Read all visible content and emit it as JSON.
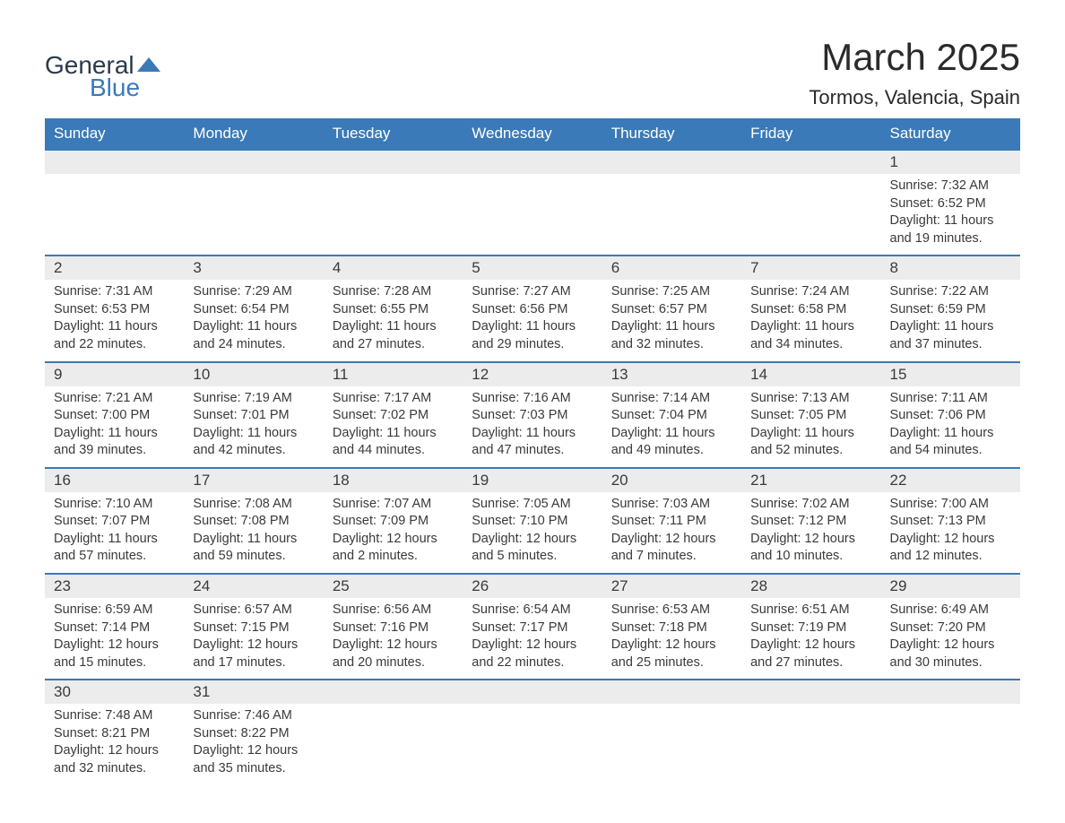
{
  "logo": {
    "general": "General",
    "blue": "Blue"
  },
  "title": "March 2025",
  "location": "Tormos, Valencia, Spain",
  "colors": {
    "header_bg": "#3a7ab8",
    "header_text": "#ffffff",
    "day_bar_bg": "#ececec",
    "text": "#3a3a3a",
    "border": "#3a7ab8"
  },
  "day_names": [
    "Sunday",
    "Monday",
    "Tuesday",
    "Wednesday",
    "Thursday",
    "Friday",
    "Saturday"
  ],
  "weeks": [
    [
      null,
      null,
      null,
      null,
      null,
      null,
      {
        "num": "1",
        "sunrise": "Sunrise: 7:32 AM",
        "sunset": "Sunset: 6:52 PM",
        "daylight1": "Daylight: 11 hours",
        "daylight2": "and 19 minutes."
      }
    ],
    [
      {
        "num": "2",
        "sunrise": "Sunrise: 7:31 AM",
        "sunset": "Sunset: 6:53 PM",
        "daylight1": "Daylight: 11 hours",
        "daylight2": "and 22 minutes."
      },
      {
        "num": "3",
        "sunrise": "Sunrise: 7:29 AM",
        "sunset": "Sunset: 6:54 PM",
        "daylight1": "Daylight: 11 hours",
        "daylight2": "and 24 minutes."
      },
      {
        "num": "4",
        "sunrise": "Sunrise: 7:28 AM",
        "sunset": "Sunset: 6:55 PM",
        "daylight1": "Daylight: 11 hours",
        "daylight2": "and 27 minutes."
      },
      {
        "num": "5",
        "sunrise": "Sunrise: 7:27 AM",
        "sunset": "Sunset: 6:56 PM",
        "daylight1": "Daylight: 11 hours",
        "daylight2": "and 29 minutes."
      },
      {
        "num": "6",
        "sunrise": "Sunrise: 7:25 AM",
        "sunset": "Sunset: 6:57 PM",
        "daylight1": "Daylight: 11 hours",
        "daylight2": "and 32 minutes."
      },
      {
        "num": "7",
        "sunrise": "Sunrise: 7:24 AM",
        "sunset": "Sunset: 6:58 PM",
        "daylight1": "Daylight: 11 hours",
        "daylight2": "and 34 minutes."
      },
      {
        "num": "8",
        "sunrise": "Sunrise: 7:22 AM",
        "sunset": "Sunset: 6:59 PM",
        "daylight1": "Daylight: 11 hours",
        "daylight2": "and 37 minutes."
      }
    ],
    [
      {
        "num": "9",
        "sunrise": "Sunrise: 7:21 AM",
        "sunset": "Sunset: 7:00 PM",
        "daylight1": "Daylight: 11 hours",
        "daylight2": "and 39 minutes."
      },
      {
        "num": "10",
        "sunrise": "Sunrise: 7:19 AM",
        "sunset": "Sunset: 7:01 PM",
        "daylight1": "Daylight: 11 hours",
        "daylight2": "and 42 minutes."
      },
      {
        "num": "11",
        "sunrise": "Sunrise: 7:17 AM",
        "sunset": "Sunset: 7:02 PM",
        "daylight1": "Daylight: 11 hours",
        "daylight2": "and 44 minutes."
      },
      {
        "num": "12",
        "sunrise": "Sunrise: 7:16 AM",
        "sunset": "Sunset: 7:03 PM",
        "daylight1": "Daylight: 11 hours",
        "daylight2": "and 47 minutes."
      },
      {
        "num": "13",
        "sunrise": "Sunrise: 7:14 AM",
        "sunset": "Sunset: 7:04 PM",
        "daylight1": "Daylight: 11 hours",
        "daylight2": "and 49 minutes."
      },
      {
        "num": "14",
        "sunrise": "Sunrise: 7:13 AM",
        "sunset": "Sunset: 7:05 PM",
        "daylight1": "Daylight: 11 hours",
        "daylight2": "and 52 minutes."
      },
      {
        "num": "15",
        "sunrise": "Sunrise: 7:11 AM",
        "sunset": "Sunset: 7:06 PM",
        "daylight1": "Daylight: 11 hours",
        "daylight2": "and 54 minutes."
      }
    ],
    [
      {
        "num": "16",
        "sunrise": "Sunrise: 7:10 AM",
        "sunset": "Sunset: 7:07 PM",
        "daylight1": "Daylight: 11 hours",
        "daylight2": "and 57 minutes."
      },
      {
        "num": "17",
        "sunrise": "Sunrise: 7:08 AM",
        "sunset": "Sunset: 7:08 PM",
        "daylight1": "Daylight: 11 hours",
        "daylight2": "and 59 minutes."
      },
      {
        "num": "18",
        "sunrise": "Sunrise: 7:07 AM",
        "sunset": "Sunset: 7:09 PM",
        "daylight1": "Daylight: 12 hours",
        "daylight2": "and 2 minutes."
      },
      {
        "num": "19",
        "sunrise": "Sunrise: 7:05 AM",
        "sunset": "Sunset: 7:10 PM",
        "daylight1": "Daylight: 12 hours",
        "daylight2": "and 5 minutes."
      },
      {
        "num": "20",
        "sunrise": "Sunrise: 7:03 AM",
        "sunset": "Sunset: 7:11 PM",
        "daylight1": "Daylight: 12 hours",
        "daylight2": "and 7 minutes."
      },
      {
        "num": "21",
        "sunrise": "Sunrise: 7:02 AM",
        "sunset": "Sunset: 7:12 PM",
        "daylight1": "Daylight: 12 hours",
        "daylight2": "and 10 minutes."
      },
      {
        "num": "22",
        "sunrise": "Sunrise: 7:00 AM",
        "sunset": "Sunset: 7:13 PM",
        "daylight1": "Daylight: 12 hours",
        "daylight2": "and 12 minutes."
      }
    ],
    [
      {
        "num": "23",
        "sunrise": "Sunrise: 6:59 AM",
        "sunset": "Sunset: 7:14 PM",
        "daylight1": "Daylight: 12 hours",
        "daylight2": "and 15 minutes."
      },
      {
        "num": "24",
        "sunrise": "Sunrise: 6:57 AM",
        "sunset": "Sunset: 7:15 PM",
        "daylight1": "Daylight: 12 hours",
        "daylight2": "and 17 minutes."
      },
      {
        "num": "25",
        "sunrise": "Sunrise: 6:56 AM",
        "sunset": "Sunset: 7:16 PM",
        "daylight1": "Daylight: 12 hours",
        "daylight2": "and 20 minutes."
      },
      {
        "num": "26",
        "sunrise": "Sunrise: 6:54 AM",
        "sunset": "Sunset: 7:17 PM",
        "daylight1": "Daylight: 12 hours",
        "daylight2": "and 22 minutes."
      },
      {
        "num": "27",
        "sunrise": "Sunrise: 6:53 AM",
        "sunset": "Sunset: 7:18 PM",
        "daylight1": "Daylight: 12 hours",
        "daylight2": "and 25 minutes."
      },
      {
        "num": "28",
        "sunrise": "Sunrise: 6:51 AM",
        "sunset": "Sunset: 7:19 PM",
        "daylight1": "Daylight: 12 hours",
        "daylight2": "and 27 minutes."
      },
      {
        "num": "29",
        "sunrise": "Sunrise: 6:49 AM",
        "sunset": "Sunset: 7:20 PM",
        "daylight1": "Daylight: 12 hours",
        "daylight2": "and 30 minutes."
      }
    ],
    [
      {
        "num": "30",
        "sunrise": "Sunrise: 7:48 AM",
        "sunset": "Sunset: 8:21 PM",
        "daylight1": "Daylight: 12 hours",
        "daylight2": "and 32 minutes."
      },
      {
        "num": "31",
        "sunrise": "Sunrise: 7:46 AM",
        "sunset": "Sunset: 8:22 PM",
        "daylight1": "Daylight: 12 hours",
        "daylight2": "and 35 minutes."
      },
      null,
      null,
      null,
      null,
      null
    ]
  ]
}
